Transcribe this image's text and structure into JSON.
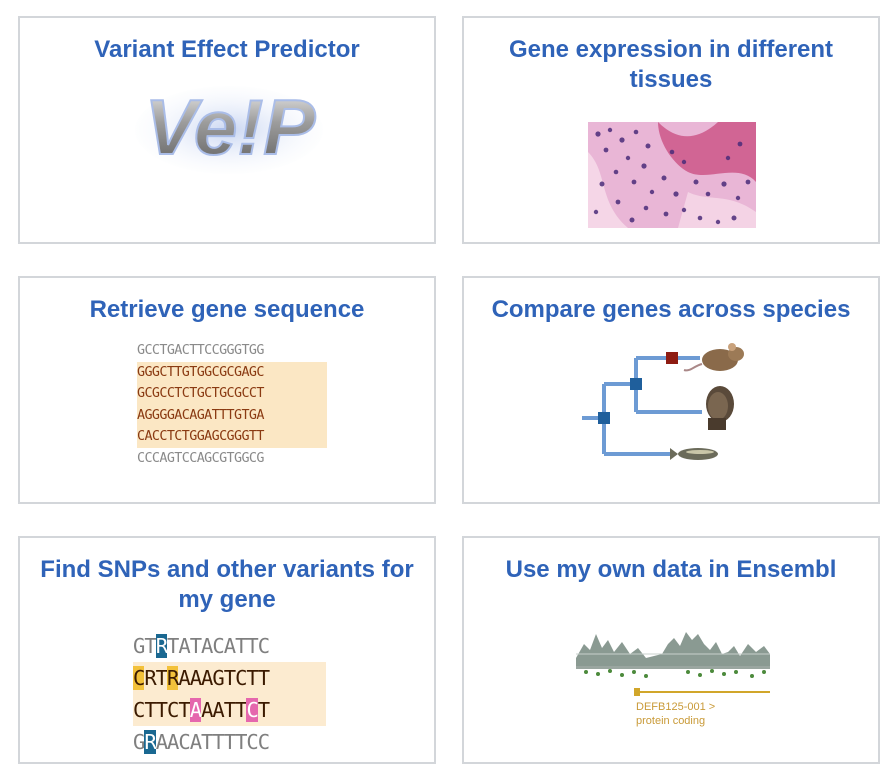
{
  "cards": [
    {
      "title": "Variant Effect Predictor",
      "logo_text": "Ve!P"
    },
    {
      "title": "Gene expression in different tissues"
    },
    {
      "title": "Retrieve gene sequence",
      "sequence_lines": [
        "GCCTGACTTCCGGGTGG",
        "GGGCTTGTGGCGCGAGC",
        "GCGCCTCTGCTGCGCCT",
        "AGGGGACAGATTTGTGA",
        "CACCTCTGGAGCGGGTT",
        "CCCAGTCCAGCGTGGCG"
      ]
    },
    {
      "title": "Compare genes across species"
    },
    {
      "title": "Find SNPs and other variants for my gene",
      "snp_lines": [
        {
          "pre": "GT",
          "mark": "R",
          "post": "TATACATTC"
        },
        {
          "pre": "",
          "mark": "C",
          "mid": "RT",
          "mark2": "R",
          "post": "AAAGTCTT"
        },
        {
          "pre": "CTTCT",
          "mark": "A",
          "mid": "AATT",
          "mark2": "C",
          "post": "T"
        },
        {
          "pre": "G",
          "mark": "R",
          "post": "AACATTTTCC"
        }
      ]
    },
    {
      "title": "Use my own data in Ensembl",
      "track_label_1": "DEFB125-001 >",
      "track_label_2": "protein coding"
    }
  ],
  "colors": {
    "title": "#2f63b8",
    "border": "#d3d6da",
    "snp_blue": "#1a6891",
    "snp_yellow": "#f3c13a",
    "snp_pink": "#e567ad"
  },
  "icons": [
    "vep-logo-icon",
    "tissue-image-icon",
    "sequence-image-icon",
    "species-tree-icon",
    "mouse-icon",
    "human-head-icon",
    "fish-icon",
    "snp-image-icon",
    "track-image-icon"
  ]
}
